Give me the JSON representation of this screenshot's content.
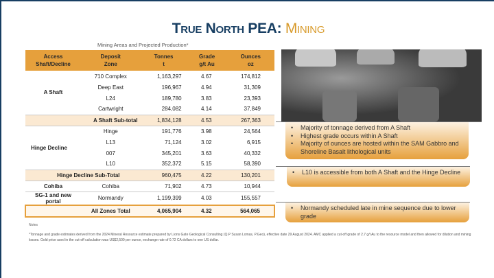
{
  "title": {
    "main": "True North PEA:",
    "accent": "Mining"
  },
  "caption": "Mining Areas and Projected Production*",
  "table": {
    "headers": [
      [
        "Access",
        "Shaft/Decline"
      ],
      [
        "Deposit",
        "Zone"
      ],
      [
        "Tonnes",
        "t"
      ],
      [
        "Grade",
        "g/t Au"
      ],
      [
        "Ounces",
        "oz"
      ]
    ],
    "groups": {
      "a_shaft": {
        "label": "A Shaft",
        "rows": [
          [
            "710 Complex",
            "1,163,297",
            "4.67",
            "174,812"
          ],
          [
            "Deep East",
            "196,967",
            "4.94",
            "31,309"
          ],
          [
            "L24",
            "189,780",
            "3.83",
            "23,393"
          ],
          [
            "Cartwright",
            "284,082",
            "4.14",
            "37,849"
          ]
        ],
        "subtotal": [
          "A Shaft Sub-total",
          "1,834,128",
          "4.53",
          "267,363"
        ]
      },
      "hinge": {
        "label": "Hinge Decline",
        "rows": [
          [
            "Hinge",
            "191,776",
            "3.98",
            "24,564"
          ],
          [
            "L13",
            "71,124",
            "3.02",
            "6,915"
          ],
          [
            "007",
            "345,201",
            "3.63",
            "40,332"
          ],
          [
            "L10",
            "352,372",
            "5.15",
            "58,390"
          ]
        ],
        "subtotal": [
          "Hinge Decline Sub-Total",
          "960,475",
          "4.22",
          "130,201"
        ]
      },
      "cohiba": {
        "label": "Cohiba",
        "row": [
          "Cohiba",
          "71,902",
          "4.73",
          "10,944"
        ]
      },
      "sg1": {
        "label": "SG-1 and new portal",
        "row": [
          "Normandy",
          "1,199,399",
          "4.03",
          "155,557"
        ]
      }
    },
    "total": [
      "All Zones Total",
      "4,065,904",
      "4.32",
      "564,065"
    ]
  },
  "callouts": [
    [
      "Majority of tonnage derived from A Shaft",
      "Highest grade occurs within A Shaft",
      "Majority of ounces are hosted within the SAM Gabbro and Shoreline Basalt lithological units"
    ],
    [
      "L10 is accessible from both A Shaft and the Hinge Decline"
    ],
    [
      "Normandy scheduled late in mine sequence due to lower grade"
    ]
  ],
  "notes_label": "Notes",
  "footnote": "*Tonnage and grade estimates derived from the 2024 Mineral Resource estimate prepared by Lions Gate Geological Consulting (Q.P Susan Lomas, P.Geo), effective date 29 August 2024. AMC applied a cut-off grade of 2.7 g/t Au to the resource model and then allowed for dilution and mining losses. Gold price used in the cut-off calculation was US$2,500 per ounce, exchange rate of 0.72 CA dollars to one US dollar."
}
